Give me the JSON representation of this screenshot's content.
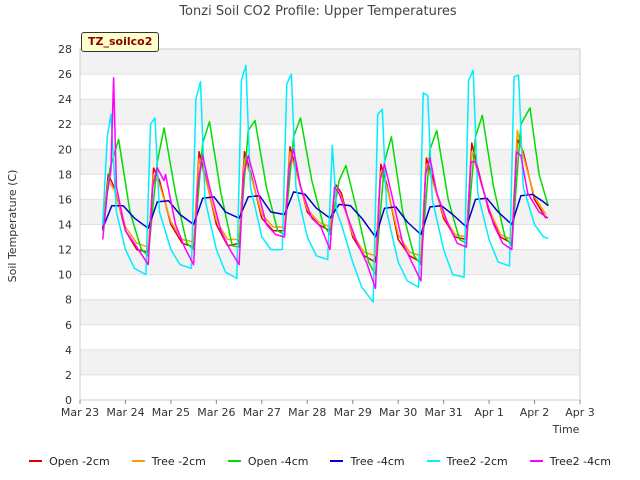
{
  "chart_data": {
    "type": "line",
    "title": "Tonzi Soil CO2 Profile: Upper Temperatures",
    "site_label": "TZ_soilco2",
    "xlabel": "Time",
    "ylabel": "Soil Temperature (C)",
    "ylim": [
      0,
      28
    ],
    "y_ticks": [
      0,
      2,
      4,
      6,
      8,
      10,
      12,
      14,
      16,
      18,
      20,
      22,
      24,
      26,
      28
    ],
    "x_tick_labels": [
      "Mar 23",
      "Mar 24",
      "Mar 25",
      "Mar 26",
      "Mar 27",
      "Mar 28",
      "Mar 29",
      "Mar 30",
      "Mar 31",
      "Apr 1",
      "Apr 2",
      "Apr 3"
    ],
    "xlim": [
      0,
      11
    ],
    "grid": true,
    "legend_position": "bottom",
    "series": [
      {
        "name": "Open -2cm",
        "color": "#dd0000",
        "x": [
          0.5,
          0.62,
          0.75,
          1.0,
          1.25,
          1.5,
          1.62,
          1.75,
          2.0,
          2.25,
          2.5,
          2.62,
          2.75,
          3.0,
          3.25,
          3.5,
          3.62,
          3.75,
          4.0,
          4.25,
          4.5,
          4.62,
          4.75,
          5.0,
          5.25,
          5.5,
          5.62,
          5.75,
          6.0,
          6.25,
          6.5,
          6.62,
          6.75,
          7.0,
          7.25,
          7.5,
          7.62,
          7.75,
          8.0,
          8.25,
          8.5,
          8.62,
          8.75,
          9.0,
          9.25,
          9.5,
          9.62,
          9.75,
          10.0,
          10.25
        ],
        "y": [
          13.5,
          18.0,
          17.0,
          13.5,
          12.0,
          11.8,
          18.5,
          17.5,
          14.0,
          12.5,
          12.2,
          19.8,
          18.0,
          14.0,
          12.3,
          12.5,
          19.8,
          18.2,
          14.5,
          13.5,
          13.5,
          20.2,
          18.5,
          15.0,
          14.0,
          13.5,
          17.2,
          16.5,
          13.0,
          11.5,
          11.0,
          18.8,
          17.2,
          12.8,
          11.5,
          11.0,
          19.3,
          17.8,
          14.5,
          13.0,
          12.8,
          20.5,
          18.5,
          15.0,
          13.0,
          12.5,
          20.8,
          19.8,
          16.0,
          14.5
        ]
      },
      {
        "name": "Tree -2cm",
        "color": "#ff9900",
        "x": [
          0.5,
          0.62,
          0.75,
          1.0,
          1.25,
          1.5,
          1.62,
          1.75,
          2.0,
          2.25,
          2.5,
          2.62,
          2.75,
          3.0,
          3.25,
          3.5,
          3.62,
          3.75,
          4.0,
          4.25,
          4.5,
          4.62,
          4.75,
          5.0,
          5.25,
          5.5,
          5.62,
          5.75,
          6.0,
          6.25,
          6.5,
          6.62,
          6.75,
          7.0,
          7.25,
          7.5,
          7.62,
          7.75,
          8.0,
          8.25,
          8.5,
          8.62,
          8.75,
          9.0,
          9.25,
          9.5,
          9.62,
          9.75,
          10.0,
          10.25
        ],
        "y": [
          13.8,
          17.5,
          16.8,
          13.8,
          12.5,
          12.2,
          18.0,
          17.2,
          14.2,
          12.8,
          12.6,
          19.2,
          17.8,
          14.3,
          12.8,
          12.8,
          19.2,
          18.0,
          14.8,
          13.8,
          13.8,
          19.8,
          18.2,
          15.2,
          14.2,
          13.8,
          16.8,
          16.2,
          13.2,
          11.8,
          11.5,
          18.2,
          17.0,
          13.2,
          11.8,
          11.5,
          18.8,
          17.5,
          14.7,
          13.2,
          13.0,
          19.8,
          18.2,
          15.2,
          13.2,
          12.8,
          21.5,
          19.5,
          16.2,
          14.8
        ]
      },
      {
        "name": "Open -4cm",
        "color": "#00dd00",
        "x": [
          0.5,
          0.66,
          0.85,
          1.1,
          1.35,
          1.5,
          1.7,
          1.85,
          2.1,
          2.35,
          2.5,
          2.7,
          2.85,
          3.1,
          3.35,
          3.5,
          3.7,
          3.85,
          4.1,
          4.35,
          4.5,
          4.7,
          4.85,
          5.1,
          5.35,
          5.5,
          5.7,
          5.85,
          6.1,
          6.35,
          6.5,
          6.7,
          6.85,
          7.1,
          7.35,
          7.5,
          7.7,
          7.85,
          8.1,
          8.35,
          8.5,
          8.7,
          8.85,
          9.1,
          9.35,
          9.5,
          9.7,
          9.9,
          10.1,
          10.3
        ],
        "y": [
          13.5,
          18.5,
          20.8,
          15.0,
          12.0,
          11.5,
          19.0,
          21.7,
          16.5,
          12.5,
          12.0,
          20.5,
          22.2,
          16.5,
          12.3,
          12.2,
          21.5,
          22.3,
          17.0,
          13.5,
          13.2,
          21.0,
          22.5,
          17.5,
          14.0,
          13.2,
          17.5,
          18.7,
          15.0,
          11.0,
          10.0,
          19.0,
          21.0,
          15.0,
          11.5,
          10.8,
          20.0,
          21.5,
          16.0,
          12.8,
          12.5,
          21.0,
          22.7,
          17.0,
          13.0,
          12.3,
          22.0,
          23.3,
          18.0,
          15.5
        ]
      },
      {
        "name": "Tree -4cm",
        "color": "#0000cc",
        "x": [
          0.5,
          0.7,
          0.95,
          1.2,
          1.5,
          1.7,
          1.95,
          2.2,
          2.5,
          2.7,
          2.95,
          3.2,
          3.5,
          3.7,
          3.95,
          4.2,
          4.5,
          4.7,
          4.95,
          5.2,
          5.5,
          5.7,
          5.95,
          6.2,
          6.5,
          6.7,
          6.95,
          7.2,
          7.5,
          7.7,
          7.95,
          8.2,
          8.5,
          8.7,
          8.95,
          9.2,
          9.5,
          9.7,
          9.95,
          10.2,
          10.3
        ],
        "y": [
          13.7,
          15.5,
          15.5,
          14.5,
          13.7,
          15.8,
          15.9,
          14.8,
          14.0,
          16.1,
          16.2,
          15.0,
          14.5,
          16.2,
          16.3,
          15.0,
          14.8,
          16.6,
          16.4,
          15.3,
          14.5,
          15.6,
          15.5,
          14.5,
          13.0,
          15.3,
          15.4,
          14.2,
          13.2,
          15.4,
          15.5,
          14.8,
          13.8,
          16.0,
          16.1,
          15.0,
          14.0,
          16.3,
          16.4,
          15.8,
          15.5
        ]
      },
      {
        "name": "Tree2 -2cm",
        "color": "#00eeff",
        "x": [
          0.5,
          0.6,
          0.68,
          0.8,
          1.0,
          1.2,
          1.45,
          1.55,
          1.65,
          1.75,
          2.0,
          2.2,
          2.45,
          2.55,
          2.65,
          2.75,
          3.0,
          3.2,
          3.45,
          3.55,
          3.65,
          3.75,
          4.0,
          4.2,
          4.45,
          4.55,
          4.65,
          4.75,
          5.0,
          5.2,
          5.45,
          5.55,
          5.65,
          5.75,
          6.0,
          6.2,
          6.45,
          6.55,
          6.65,
          6.75,
          7.0,
          7.2,
          7.45,
          7.55,
          7.65,
          7.75,
          8.0,
          8.2,
          8.45,
          8.55,
          8.65,
          8.75,
          9.0,
          9.2,
          9.45,
          9.55,
          9.65,
          9.75,
          10.0,
          10.2,
          10.3
        ],
        "y": [
          14.0,
          21.0,
          22.8,
          15.0,
          12.0,
          10.5,
          10.0,
          22.0,
          22.5,
          15.0,
          12.0,
          10.8,
          10.5,
          24.0,
          25.4,
          16.0,
          12.0,
          10.2,
          9.7,
          25.5,
          26.7,
          17.0,
          13.0,
          12.0,
          12.0,
          25.2,
          26.0,
          17.0,
          13.0,
          11.5,
          11.2,
          20.3,
          15.0,
          14.0,
          11.0,
          9.0,
          7.8,
          22.8,
          23.2,
          15.0,
          11.0,
          9.5,
          9.0,
          24.5,
          24.3,
          16.0,
          12.0,
          10.0,
          9.8,
          25.5,
          26.3,
          16.5,
          12.8,
          11.0,
          10.7,
          25.8,
          25.9,
          17.0,
          14.0,
          13.0,
          12.9
        ]
      },
      {
        "name": "Tree2 -4cm",
        "color": "#ff00ff",
        "x": [
          0.5,
          0.6,
          0.68,
          0.74,
          0.8,
          1.0,
          1.25,
          1.5,
          1.6,
          1.7,
          1.85,
          1.88,
          2.1,
          2.3,
          2.5,
          2.6,
          2.7,
          2.85,
          3.1,
          3.3,
          3.5,
          3.6,
          3.7,
          3.85,
          4.1,
          4.3,
          4.5,
          4.6,
          4.7,
          4.85,
          5.1,
          5.3,
          5.5,
          5.6,
          5.7,
          5.85,
          6.1,
          6.3,
          6.5,
          6.6,
          6.7,
          6.85,
          7.1,
          7.3,
          7.5,
          7.6,
          7.7,
          7.85,
          8.1,
          8.3,
          8.5,
          8.6,
          8.7,
          8.85,
          9.1,
          9.3,
          9.5,
          9.6,
          9.7,
          9.85,
          10.1,
          10.3
        ],
        "y": [
          12.8,
          16.5,
          18.3,
          25.7,
          17.0,
          13.5,
          12.2,
          10.8,
          17.0,
          18.5,
          17.5,
          18.0,
          14.0,
          12.2,
          10.8,
          17.5,
          19.5,
          17.0,
          13.5,
          12.0,
          10.8,
          18.0,
          19.5,
          17.5,
          14.0,
          13.2,
          13.0,
          18.5,
          20.0,
          17.0,
          14.5,
          13.8,
          12.0,
          17.0,
          16.5,
          15.0,
          12.5,
          11.0,
          8.9,
          17.5,
          18.8,
          16.5,
          12.5,
          11.0,
          9.5,
          18.0,
          19.3,
          16.5,
          14.0,
          12.5,
          12.2,
          19.0,
          19.0,
          17.0,
          14.0,
          12.5,
          12.0,
          19.8,
          19.5,
          16.5,
          15.0,
          14.5
        ]
      }
    ]
  }
}
